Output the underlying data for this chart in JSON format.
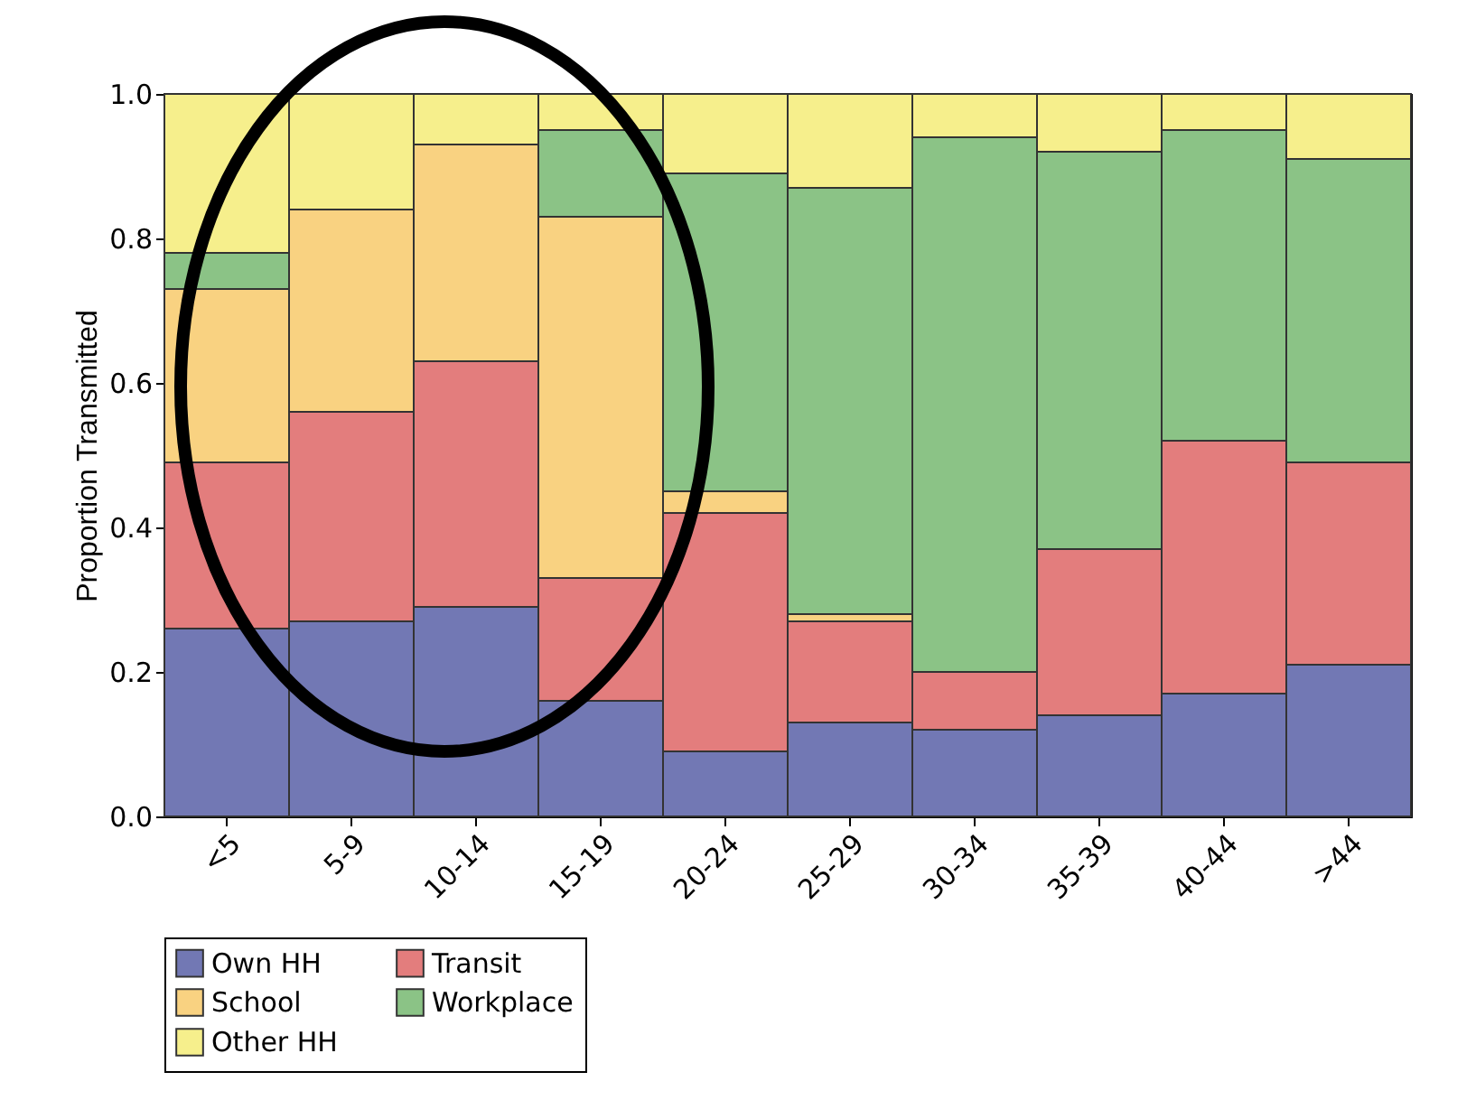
{
  "chart_data": {
    "type": "bar",
    "stacked": true,
    "ylabel": "Proportion Transmitted",
    "categories": [
      "<5",
      "5-9",
      "10-14",
      "15-19",
      "20-24",
      "25-29",
      "30-34",
      "35-39",
      "40-44",
      ">44"
    ],
    "series": [
      {
        "name": "Own HH",
        "color": "#7278b4",
        "values": [
          0.26,
          0.27,
          0.29,
          0.16,
          0.09,
          0.13,
          0.12,
          0.14,
          0.17,
          0.21
        ]
      },
      {
        "name": "Transit",
        "color": "#e37d7d",
        "values": [
          0.23,
          0.29,
          0.34,
          0.17,
          0.33,
          0.14,
          0.08,
          0.23,
          0.35,
          0.28
        ]
      },
      {
        "name": "School",
        "color": "#f9d281",
        "values": [
          0.24,
          0.28,
          0.3,
          0.5,
          0.03,
          0.01,
          0.0,
          0.0,
          0.0,
          0.0
        ]
      },
      {
        "name": "Workplace",
        "color": "#8bc386",
        "values": [
          0.05,
          0.0,
          0.0,
          0.12,
          0.44,
          0.59,
          0.74,
          0.55,
          0.43,
          0.42
        ]
      },
      {
        "name": "Other HH",
        "color": "#f6ef8c",
        "values": [
          0.22,
          0.16,
          0.07,
          0.05,
          0.11,
          0.13,
          0.06,
          0.08,
          0.05,
          0.09
        ]
      }
    ],
    "ylim": [
      0,
      1
    ],
    "yticks": [
      {
        "value": 0,
        "label": "0.0"
      },
      0.2,
      0.4,
      0.6,
      0.8,
      {
        "value": 1,
        "label": "1.0"
      }
    ],
    "legend": "bottom"
  }
}
